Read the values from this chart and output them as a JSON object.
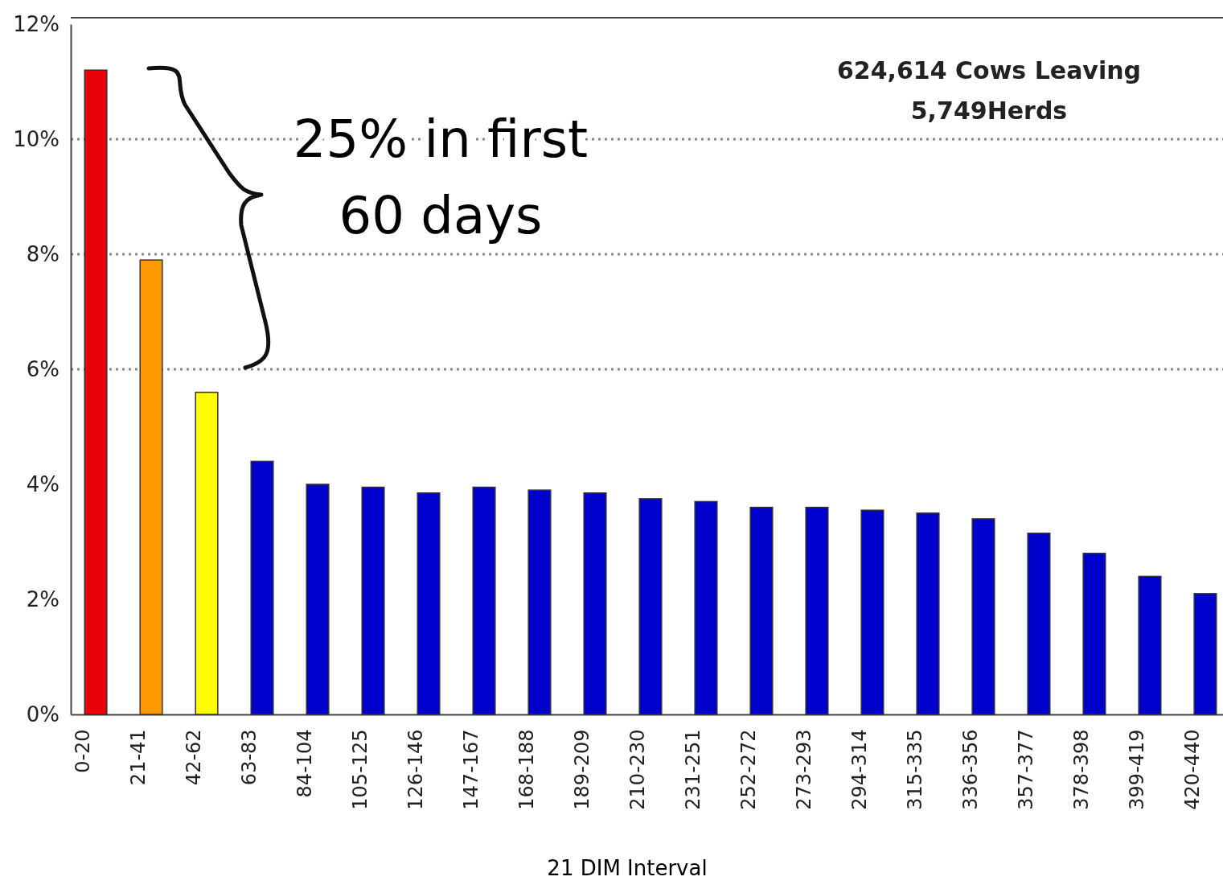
{
  "chart_data": {
    "type": "bar",
    "xlabel": "21 DIM Interval",
    "categories": [
      "0-20",
      "21-41",
      "42-62",
      "63-83",
      "84-104",
      "105-125",
      "126-146",
      "147-167",
      "168-188",
      "189-209",
      "210-230",
      "231-251",
      "252-272",
      "273-293",
      "294-314",
      "315-335",
      "336-356",
      "357-377",
      "378-398",
      "399-419",
      "420-440"
    ],
    "values": [
      11.2,
      7.9,
      5.6,
      4.4,
      4.0,
      3.95,
      3.85,
      3.95,
      3.9,
      3.85,
      3.75,
      3.7,
      3.6,
      3.6,
      3.55,
      3.5,
      3.4,
      3.15,
      2.8,
      2.4,
      2.1
    ],
    "colors": [
      "#e8000b",
      "#ff9900",
      "#ffff00",
      "#0000cc",
      "#0000cc",
      "#0000cc",
      "#0000cc",
      "#0000cc",
      "#0000cc",
      "#0000cc",
      "#0000cc",
      "#0000cc",
      "#0000cc",
      "#0000cc",
      "#0000cc",
      "#0000cc",
      "#0000cc",
      "#0000cc",
      "#0000cc",
      "#0000cc",
      "#0000cc"
    ],
    "ylim": [
      0,
      12
    ],
    "yticks": [
      {
        "value": 0,
        "label": "0%"
      },
      {
        "value": 2,
        "label": "2%"
      },
      {
        "value": 4,
        "label": "4%"
      },
      {
        "value": 6,
        "label": "6%"
      },
      {
        "value": 8,
        "label": "8%"
      },
      {
        "value": 10,
        "label": "10%"
      },
      {
        "value": 12,
        "label": "12%"
      }
    ],
    "ref_lines": [
      {
        "axis": "y",
        "value": 10,
        "color": "#888888",
        "line_style": "dotted"
      },
      {
        "axis": "y",
        "value": 8,
        "color": "#888888",
        "line_style": "dotted"
      },
      {
        "axis": "y",
        "value": 6,
        "color": "#888888",
        "line_style": "dotted"
      }
    ],
    "annotations": [
      "25% in first\n60 days",
      "624,614 Cows Leaving\n5,749Herds"
    ]
  }
}
